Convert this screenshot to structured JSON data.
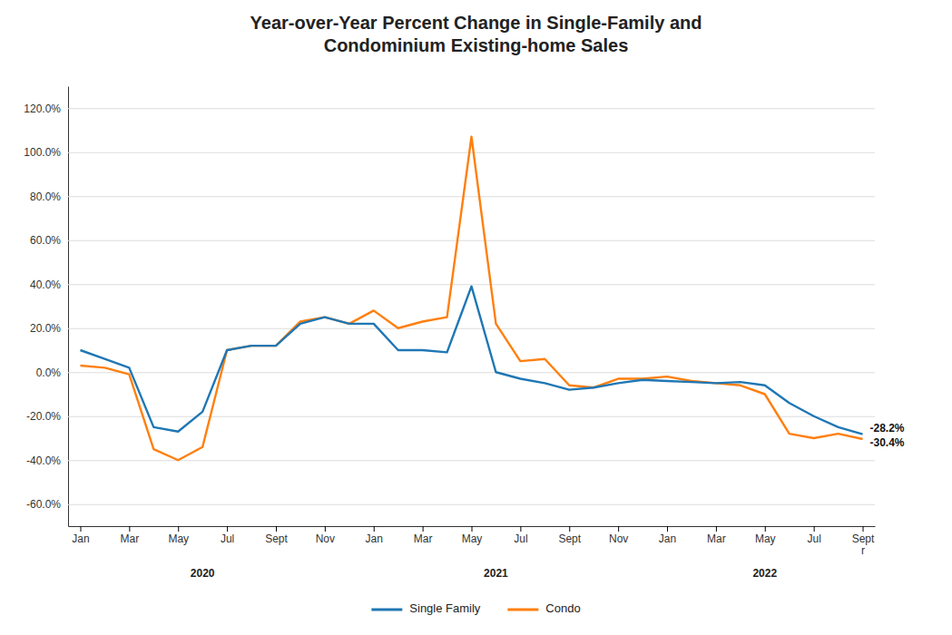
{
  "chart_data": {
    "type": "line",
    "title": "Year-over-Year Percent Change in Single-Family and\nCondominium Existing-home Sales",
    "categories": [
      "Jan",
      null,
      "Mar",
      null,
      "May",
      null,
      "Jul",
      null,
      "Sept",
      null,
      "Nov",
      null,
      "Jan",
      null,
      "Mar",
      null,
      "May",
      null,
      "Jul",
      null,
      "Sept",
      null,
      "Nov",
      null,
      "Jan",
      null,
      "Mar",
      null,
      "May",
      null,
      "Jul",
      null,
      "Sept\nr"
    ],
    "series": [
      {
        "name": "Single Family",
        "values": [
          10.0,
          6.0,
          2.0,
          -25.0,
          -27.0,
          -18.0,
          10.0,
          12.0,
          12.0,
          22.0,
          25.0,
          22.0,
          22.0,
          10.0,
          10.0,
          9.0,
          39.0,
          0.0,
          -3.0,
          -5.0,
          -8.0,
          -7.0,
          -5.0,
          -3.5,
          -4.0,
          -4.5,
          -5.0,
          -4.5,
          -6.0,
          -14.0,
          -20.0,
          -25.0,
          -28.2
        ],
        "value_labels": [
          null,
          null,
          null,
          null,
          null,
          null,
          null,
          null,
          null,
          null,
          null,
          null,
          null,
          null,
          null,
          null,
          null,
          null,
          null,
          null,
          null,
          null,
          null,
          null,
          null,
          null,
          null,
          null,
          null,
          null,
          null,
          null,
          "-28.2%"
        ]
      },
      {
        "name": "Condo",
        "values": [
          3.0,
          2.0,
          -1.0,
          -35.0,
          -40.0,
          -34.0,
          10.0,
          12.0,
          12.0,
          23.0,
          25.0,
          22.0,
          28.0,
          20.0,
          23.0,
          25.0,
          107.0,
          22.0,
          5.0,
          6.0,
          -6.0,
          -7.0,
          -3.0,
          -3.0,
          -2.0,
          -4.0,
          -5.0,
          -6.0,
          -10.0,
          -28.0,
          -30.0,
          -28.0,
          -30.4
        ],
        "value_labels": [
          null,
          null,
          null,
          null,
          null,
          null,
          null,
          null,
          null,
          null,
          null,
          null,
          null,
          null,
          null,
          null,
          null,
          null,
          null,
          null,
          null,
          null,
          null,
          null,
          null,
          null,
          null,
          null,
          null,
          null,
          null,
          null,
          "-30.4%"
        ]
      }
    ],
    "ylim": [
      -70,
      130
    ],
    "yticks": [
      {
        "value": -60,
        "label": "-60.0%"
      },
      {
        "value": -40,
        "label": "-40.0%"
      },
      {
        "value": -20,
        "label": "-20.0%"
      },
      {
        "value": 0,
        "label": "0.0%"
      },
      {
        "value": 20,
        "label": "20.0%"
      },
      {
        "value": 40,
        "label": "40.0%"
      },
      {
        "value": 60,
        "label": "60.0%"
      },
      {
        "value": 80,
        "label": "80.0%"
      },
      {
        "value": 100,
        "label": "100.0%"
      },
      {
        "value": 120,
        "label": "120.0%"
      }
    ],
    "grid": true,
    "legend": "bottom",
    "annotations": [
      {
        "text": "2020",
        "x": 5
      },
      {
        "text": "2021",
        "x": 17
      },
      {
        "text": "2022",
        "x": 28
      }
    ]
  }
}
